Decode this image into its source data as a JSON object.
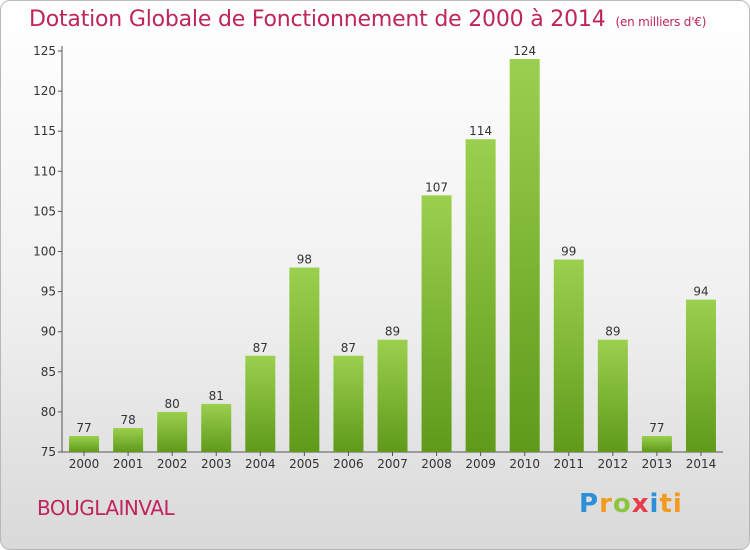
{
  "header": {
    "title": "Dotation Globale de Fonctionnement de 2000 à 2014",
    "subtitle": "(en milliers d'€)"
  },
  "footer": {
    "commune": "BOUGLAINVAL",
    "logo": [
      "P",
      "r",
      "o",
      "x",
      "i",
      "ti"
    ]
  },
  "colors": {
    "title": "#c0245c",
    "bar_top": "#9bd04e",
    "bar_bottom": "#5f9a1a"
  },
  "chart_data": {
    "type": "bar",
    "title": "Dotation Globale de Fonctionnement de 2000 à 2014",
    "subtitle": "(en milliers d'€)",
    "xlabel": "",
    "ylabel": "",
    "categories": [
      "2000",
      "2001",
      "2002",
      "2003",
      "2004",
      "2005",
      "2006",
      "2007",
      "2008",
      "2009",
      "2010",
      "2011",
      "2012",
      "2013",
      "2014"
    ],
    "values": [
      77,
      78,
      80,
      81,
      87,
      98,
      87,
      89,
      107,
      114,
      124,
      99,
      89,
      77,
      94
    ],
    "ylim": [
      75,
      125
    ],
    "yticks": [
      75,
      80,
      85,
      90,
      95,
      100,
      105,
      110,
      115,
      120,
      125
    ],
    "grid": false,
    "legend": "none"
  }
}
